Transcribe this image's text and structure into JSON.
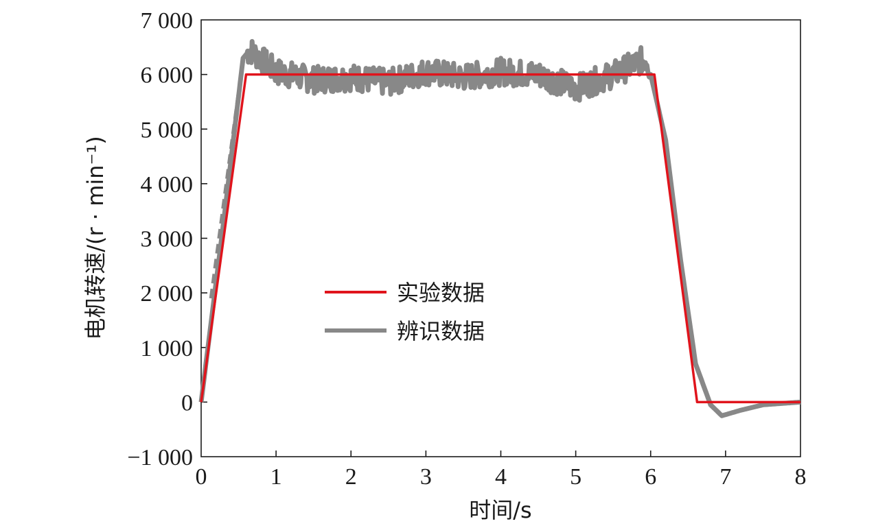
{
  "chart_data": {
    "type": "line",
    "title": "",
    "xlabel": "时间/s",
    "ylabel": "电机转速/(r · min⁻¹)",
    "xlim": [
      0,
      8
    ],
    "ylim": [
      -1000,
      7000
    ],
    "x_ticks": [
      0,
      1,
      2,
      3,
      4,
      5,
      6,
      7,
      8
    ],
    "y_ticks": [
      -1000,
      0,
      1000,
      2000,
      3000,
      4000,
      5000,
      6000,
      7000
    ],
    "x_tick_labels": [
      "0",
      "1",
      "2",
      "3",
      "4",
      "5",
      "6",
      "7",
      "8"
    ],
    "y_tick_labels": [
      "−1 000",
      "0",
      "1 000",
      "2 000",
      "3 000",
      "4 000",
      "5 000",
      "6 000",
      "7 000"
    ],
    "grid": false,
    "legend_position": "center",
    "series": [
      {
        "name": "实验数据",
        "color": "#e0141c",
        "x": [
          0,
          0.6,
          6.05,
          6.62,
          8
        ],
        "y": [
          0,
          6000,
          6000,
          0,
          0
        ]
      },
      {
        "name": "辨识数据",
        "color": "#888888",
        "x": [
          0,
          0.3,
          0.56,
          0.65,
          1.0,
          1.5,
          2.0,
          2.5,
          3.0,
          3.5,
          4.0,
          4.5,
          5.0,
          5.5,
          5.95,
          6.2,
          6.4,
          6.6,
          6.8,
          6.95,
          7.2,
          7.5,
          8.0
        ],
        "y": [
          0,
          3300,
          6300,
          6450,
          6050,
          5900,
          5950,
          5850,
          6050,
          5950,
          6050,
          6000,
          5750,
          6000,
          6300,
          4800,
          2600,
          700,
          -50,
          -250,
          -150,
          -50,
          0
        ]
      }
    ]
  }
}
